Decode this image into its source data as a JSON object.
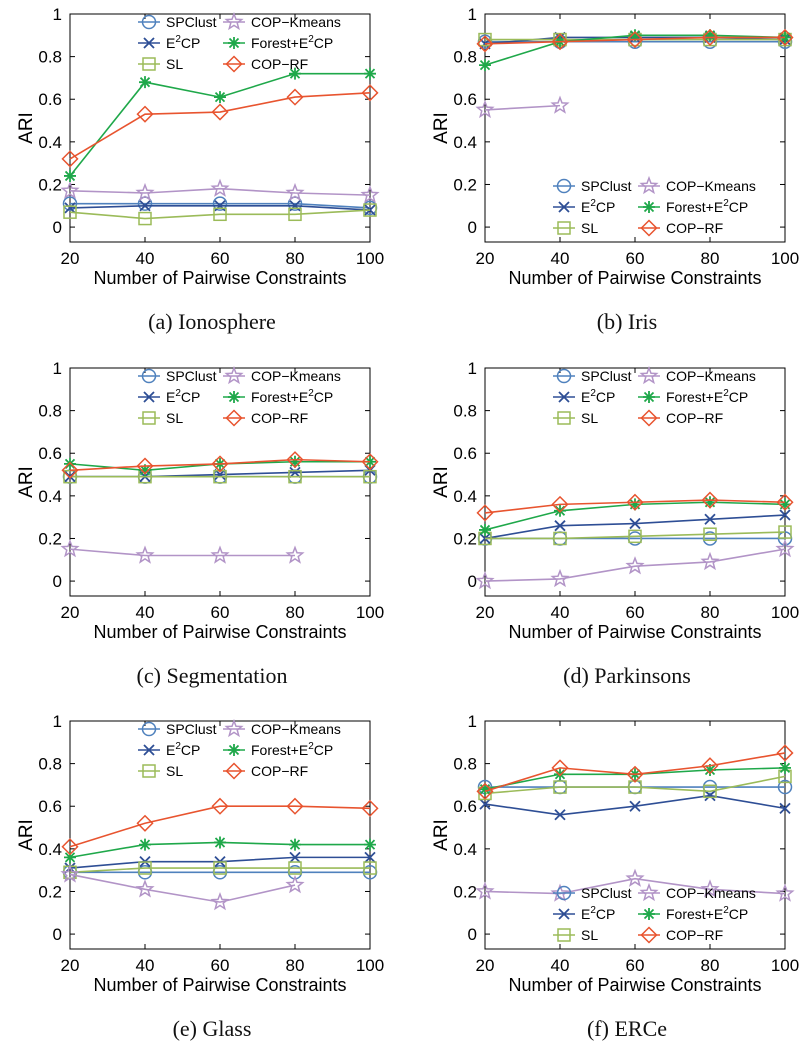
{
  "chart_data": [
    {
      "type": "line",
      "caption": "(a)  Ionosphere",
      "xlabel": "Number of Pairwise Constraints",
      "ylabel": "ARI",
      "xlim": [
        20,
        100
      ],
      "ylim": [
        -0.07,
        1.0
      ],
      "x_ticks": [
        "20",
        "40",
        "60",
        "80",
        "100"
      ],
      "y_ticks": [
        "0",
        "0.2",
        "0.4",
        "0.6",
        "0.8",
        "1"
      ],
      "legend_position": "top",
      "x": [
        20,
        40,
        60,
        80,
        100
      ],
      "series": [
        {
          "name": "SPClust",
          "values": [
            0.11,
            0.11,
            0.11,
            0.11,
            0.09
          ]
        },
        {
          "name": "E2CP",
          "values": [
            0.09,
            0.1,
            0.1,
            0.1,
            0.08
          ]
        },
        {
          "name": "SL",
          "values": [
            0.07,
            0.04,
            0.06,
            0.06,
            0.08
          ]
        },
        {
          "name": "COP−Kmeans",
          "values": [
            0.17,
            0.16,
            0.18,
            0.16,
            0.15
          ]
        },
        {
          "name": "Forest+E2CP",
          "values": [
            0.24,
            0.68,
            0.61,
            0.72,
            0.72
          ]
        },
        {
          "name": "COP−RF",
          "values": [
            0.32,
            0.53,
            0.54,
            0.61,
            0.63
          ]
        }
      ]
    },
    {
      "type": "line",
      "caption": "(b)  Iris",
      "xlabel": "Number of Pairwise Constraints",
      "ylabel": "ARI",
      "xlim": [
        20,
        100
      ],
      "ylim": [
        -0.07,
        1.0
      ],
      "x_ticks": [
        "20",
        "40",
        "60",
        "80",
        "100"
      ],
      "y_ticks": [
        "0",
        "0.2",
        "0.4",
        "0.6",
        "0.8",
        "1"
      ],
      "legend_position": "bottom",
      "x": [
        20,
        40,
        60,
        80,
        100
      ],
      "series": [
        {
          "name": "SPClust",
          "values": [
            0.87,
            0.87,
            0.87,
            0.87,
            0.87
          ]
        },
        {
          "name": "E2CP",
          "values": [
            0.86,
            0.89,
            0.89,
            0.89,
            0.88
          ]
        },
        {
          "name": "SL",
          "values": [
            0.88,
            0.88,
            0.88,
            0.88,
            0.88
          ]
        },
        {
          "name": "COP−Kmeans",
          "values": [
            0.55,
            0.57,
            null,
            null,
            null
          ]
        },
        {
          "name": "Forest+E2CP",
          "values": [
            0.76,
            0.87,
            0.9,
            0.9,
            0.89
          ]
        },
        {
          "name": "COP−RF",
          "values": [
            0.86,
            0.87,
            0.88,
            0.89,
            0.89
          ]
        }
      ]
    },
    {
      "type": "line",
      "caption": "(c)  Segmentation",
      "xlabel": "Number of Pairwise Constraints",
      "ylabel": "ARI",
      "xlim": [
        20,
        100
      ],
      "ylim": [
        -0.07,
        1.0
      ],
      "x_ticks": [
        "20",
        "40",
        "60",
        "80",
        "100"
      ],
      "y_ticks": [
        "0",
        "0.2",
        "0.4",
        "0.6",
        "0.8",
        "1"
      ],
      "legend_position": "top",
      "x": [
        20,
        40,
        60,
        80,
        100
      ],
      "series": [
        {
          "name": "SPClust",
          "values": [
            0.49,
            0.49,
            0.49,
            0.49,
            0.49
          ]
        },
        {
          "name": "E2CP",
          "values": [
            0.49,
            0.49,
            0.5,
            0.51,
            0.52
          ]
        },
        {
          "name": "SL",
          "values": [
            0.49,
            0.49,
            0.49,
            0.49,
            0.49
          ]
        },
        {
          "name": "COP−Kmeans",
          "values": [
            0.15,
            0.12,
            0.12,
            0.12,
            null
          ]
        },
        {
          "name": "Forest+E2CP",
          "values": [
            0.55,
            0.52,
            0.55,
            0.56,
            0.56
          ]
        },
        {
          "name": "COP−RF",
          "values": [
            0.52,
            0.54,
            0.55,
            0.57,
            0.56
          ]
        }
      ]
    },
    {
      "type": "line",
      "caption": "(d)  Parkinsons",
      "xlabel": "Number of Pairwise Constraints",
      "ylabel": "ARI",
      "xlim": [
        20,
        100
      ],
      "ylim": [
        -0.07,
        1.0
      ],
      "x_ticks": [
        "20",
        "40",
        "60",
        "80",
        "100"
      ],
      "y_ticks": [
        "0",
        "0.2",
        "0.4",
        "0.6",
        "0.8",
        "1"
      ],
      "legend_position": "top",
      "x": [
        20,
        40,
        60,
        80,
        100
      ],
      "series": [
        {
          "name": "SPClust",
          "values": [
            0.2,
            0.2,
            0.2,
            0.2,
            0.2
          ]
        },
        {
          "name": "E2CP",
          "values": [
            0.2,
            0.26,
            0.27,
            0.29,
            0.31
          ]
        },
        {
          "name": "SL",
          "values": [
            0.2,
            0.2,
            0.21,
            0.22,
            0.23
          ]
        },
        {
          "name": "COP−Kmeans",
          "values": [
            0.0,
            0.01,
            0.07,
            0.09,
            0.15
          ]
        },
        {
          "name": "Forest+E2CP",
          "values": [
            0.24,
            0.33,
            0.36,
            0.37,
            0.36
          ]
        },
        {
          "name": "COP−RF",
          "values": [
            0.32,
            0.36,
            0.37,
            0.38,
            0.37
          ]
        }
      ]
    },
    {
      "type": "line",
      "caption": "(e)  Glass",
      "xlabel": "Number of Pairwise Constraints",
      "ylabel": "ARI",
      "xlim": [
        20,
        100
      ],
      "ylim": [
        -0.07,
        1.0
      ],
      "x_ticks": [
        "20",
        "40",
        "60",
        "80",
        "100"
      ],
      "y_ticks": [
        "0",
        "0.2",
        "0.4",
        "0.6",
        "0.8",
        "1"
      ],
      "legend_position": "top",
      "x": [
        20,
        40,
        60,
        80,
        100
      ],
      "series": [
        {
          "name": "SPClust",
          "values": [
            0.29,
            0.29,
            0.29,
            0.29,
            0.29
          ]
        },
        {
          "name": "E2CP",
          "values": [
            0.31,
            0.34,
            0.34,
            0.36,
            0.36
          ]
        },
        {
          "name": "SL",
          "values": [
            0.29,
            0.31,
            0.31,
            0.31,
            0.31
          ]
        },
        {
          "name": "COP−Kmeans",
          "values": [
            0.28,
            0.21,
            0.15,
            0.23,
            null
          ]
        },
        {
          "name": "Forest+E2CP",
          "values": [
            0.36,
            0.42,
            0.43,
            0.42,
            0.42
          ]
        },
        {
          "name": "COP−RF",
          "values": [
            0.41,
            0.52,
            0.6,
            0.6,
            0.59
          ]
        }
      ]
    },
    {
      "type": "line",
      "caption": "(f)  ERCe",
      "xlabel": "Number of Pairwise Constraints",
      "ylabel": "ARI",
      "xlim": [
        20,
        100
      ],
      "ylim": [
        -0.07,
        1.0
      ],
      "x_ticks": [
        "20",
        "40",
        "60",
        "80",
        "100"
      ],
      "y_ticks": [
        "0",
        "0.2",
        "0.4",
        "0.6",
        "0.8",
        "1"
      ],
      "legend_position": "bottom",
      "x": [
        20,
        40,
        60,
        80,
        100
      ],
      "series": [
        {
          "name": "SPClust",
          "values": [
            0.69,
            0.69,
            0.69,
            0.69,
            0.69
          ]
        },
        {
          "name": "E2CP",
          "values": [
            0.61,
            0.56,
            0.6,
            0.65,
            0.59
          ]
        },
        {
          "name": "SL",
          "values": [
            0.66,
            0.69,
            0.69,
            0.67,
            0.74
          ]
        },
        {
          "name": "COP−Kmeans",
          "values": [
            0.2,
            0.19,
            0.26,
            0.21,
            0.19
          ]
        },
        {
          "name": "Forest+E2CP",
          "values": [
            0.68,
            0.75,
            0.75,
            0.77,
            0.78
          ]
        },
        {
          "name": "COP−RF",
          "values": [
            0.67,
            0.78,
            0.75,
            0.79,
            0.85
          ]
        }
      ]
    }
  ],
  "series_style": [
    {
      "color": "#4f81bd",
      "marker": "circle"
    },
    {
      "color": "#2e4e95",
      "marker": "x"
    },
    {
      "color": "#9bbb59",
      "marker": "square"
    },
    {
      "color": "#b294c7",
      "marker": "star"
    },
    {
      "color": "#1fa84a",
      "marker": "asterisk"
    },
    {
      "color": "#e8542f",
      "marker": "diamond"
    }
  ]
}
